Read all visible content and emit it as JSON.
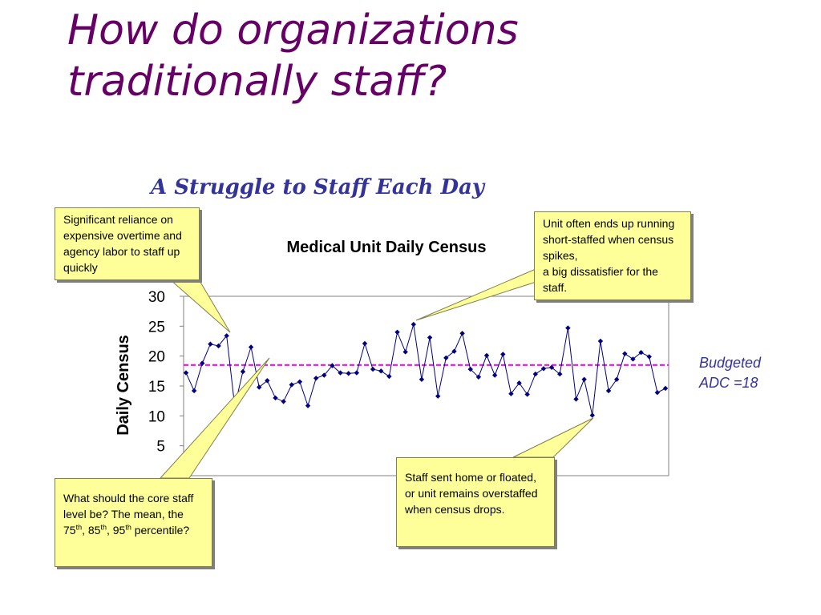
{
  "slide": {
    "title_line1": "How do organizations",
    "title_line2": "traditionally staff?",
    "subtitle": "A Struggle to Staff Each Day"
  },
  "callouts": {
    "overtime": "Significant reliance on expensive overtime and agency labor to staff up quickly",
    "short_staffed_line1": "Unit often ends up running short-staffed when census spikes,",
    "short_staffed_line2": "a big dissatisfier for the staff.",
    "core_staff_a": "What should the core staff level be? The mean, the 75",
    "core_staff_sup1": "th",
    "core_staff_b": ", 85",
    "core_staff_sup2": "th",
    "core_staff_c": ", 95",
    "core_staff_sup3": "th",
    "core_staff_d": " percentile?",
    "sent_home": "Staff sent home or floated, or unit remains overstaffed when census drops."
  },
  "budget_label": {
    "line1": "Budgeted",
    "line2": "ADC =18"
  },
  "colors": {
    "title": "#660066",
    "subtitle": "#333399",
    "series": "#000080",
    "budget_line": "#ff00ff",
    "callout_fill": "#ffff99"
  },
  "chart_data": {
    "type": "line",
    "title": "Medical Unit Daily Census",
    "ylabel": "Daily Census",
    "ylim": [
      0,
      30
    ],
    "yticks": [
      "5",
      "10",
      "15",
      "20",
      "25",
      "30"
    ],
    "series": [
      {
        "values": [
          17.2,
          14.2,
          18.8,
          22,
          21.7,
          23.4,
          11.6,
          17.4,
          21.5,
          14.8,
          15.9,
          13,
          12.4,
          15.2,
          15.7,
          11.7,
          16.3,
          16.8,
          18.4,
          17.2,
          17.1,
          17.2,
          22.1,
          17.8,
          17.5,
          16.6,
          24,
          20.7,
          25.3,
          16.1,
          23.1,
          13.3,
          19.7,
          20.8,
          23.8,
          17.8,
          16.5,
          20.1,
          16.8,
          20.3,
          13.7,
          15.5,
          13.6,
          17,
          17.9,
          18.1,
          17,
          24.7,
          12.8,
          16.1,
          10.1,
          22.5,
          14.2,
          16.1,
          20.4,
          19.5,
          20.6,
          19.9,
          13.9,
          14.6
        ]
      }
    ],
    "reference_line": {
      "value": 18.5,
      "style": "dashed"
    },
    "grid": false
  }
}
